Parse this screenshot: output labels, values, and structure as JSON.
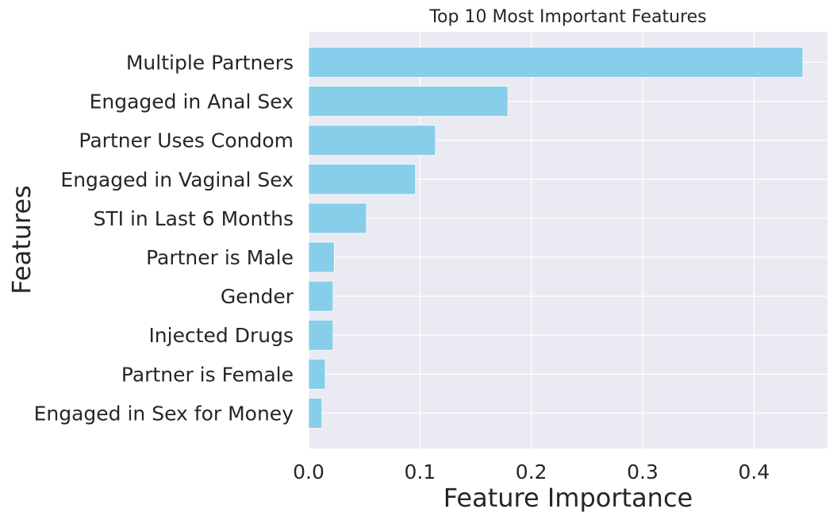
{
  "chart_data": {
    "type": "bar",
    "orientation": "horizontal",
    "title": "Top 10 Most Important Features",
    "xlabel": "Feature Importance",
    "ylabel": "Features",
    "categories": [
      "Multiple Partners",
      "Engaged in Anal Sex",
      "Partner Uses Condom",
      "Engaged in Vaginal Sex",
      "STI in Last 6 Months",
      "Partner is Male",
      "Gender",
      "Injected Drugs",
      "Partner is Female",
      "Engaged in Sex for Money"
    ],
    "values": [
      0.444,
      0.179,
      0.114,
      0.096,
      0.052,
      0.023,
      0.022,
      0.022,
      0.015,
      0.012
    ],
    "xticks": [
      0.0,
      0.1,
      0.2,
      0.3,
      0.4
    ],
    "xtick_labels": [
      "0.0",
      "0.1",
      "0.2",
      "0.3",
      "0.4"
    ],
    "xlim": [
      0,
      0.466
    ],
    "grid": true,
    "bar_color": "#87ceeb",
    "background_color": "#eaeaf2"
  }
}
